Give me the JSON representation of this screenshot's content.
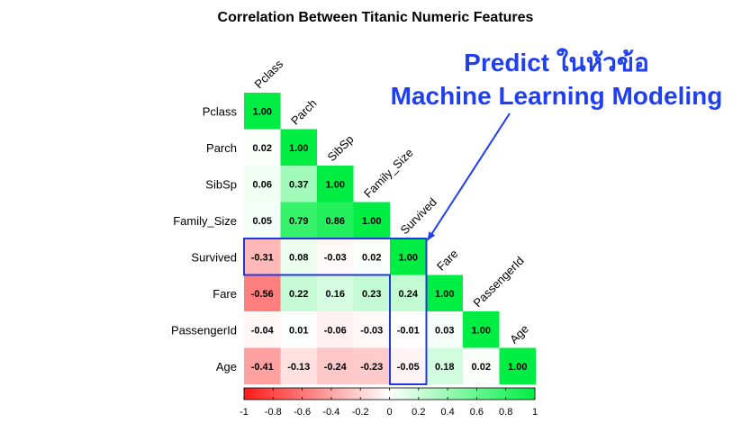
{
  "chart_data": {
    "type": "heatmap",
    "title": "Correlation Between Titanic Numeric Features",
    "variables": [
      "Pclass",
      "Parch",
      "SibSp",
      "Family_Size",
      "Survived",
      "Fare",
      "PassengerId",
      "Age"
    ],
    "matrix_lower": [
      [
        1.0
      ],
      [
        0.02,
        1.0
      ],
      [
        0.06,
        0.37,
        1.0
      ],
      [
        0.05,
        0.79,
        0.86,
        1.0
      ],
      [
        -0.31,
        0.08,
        -0.03,
        0.02,
        1.0
      ],
      [
        -0.56,
        0.22,
        0.16,
        0.23,
        0.24,
        1.0
      ],
      [
        -0.04,
        0.01,
        -0.06,
        -0.03,
        -0.01,
        0.03,
        1.0
      ],
      [
        -0.41,
        -0.13,
        -0.24,
        -0.23,
        -0.05,
        0.18,
        0.02,
        1.0
      ]
    ],
    "colorbar": {
      "range": [
        -1,
        1
      ],
      "tick_labels": [
        "-1",
        "-0.8",
        "-0.6",
        "-0.4",
        "-0.2",
        "0",
        "0.2",
        "0.4",
        "0.6",
        "0.8",
        "1"
      ],
      "colors": {
        "negative": "#ff1a1a",
        "zero": "#ffffff",
        "positive": "#00ee44"
      }
    },
    "highlight_color": "#2038e0",
    "annotation": {
      "line1": "Predict ในหัวข้อ",
      "line2": "Machine Learning Modeling",
      "color": "#1f3ff0"
    }
  }
}
